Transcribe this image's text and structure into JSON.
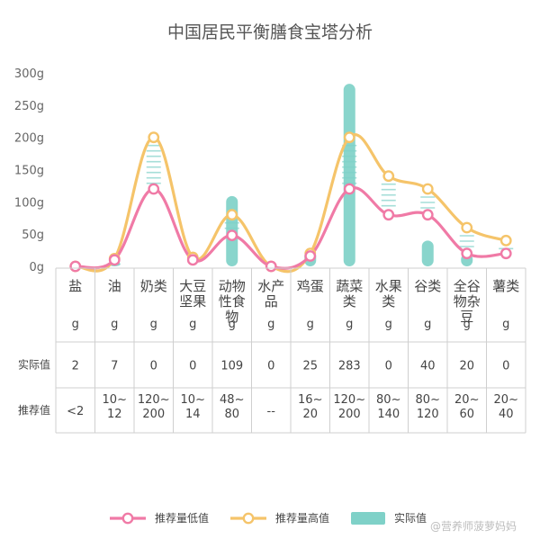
{
  "title": "中国居民平衡膳食宝塔分析",
  "watermark": "@营养师菠萝妈妈",
  "colors": {
    "low": "#f07aa6",
    "high": "#f5c46a",
    "actual": "#7fd1c8",
    "grid": "#cfcfcf"
  },
  "chart_data": {
    "type": "line",
    "title": "中国居民平衡膳食宝塔分析",
    "ylim": [
      0,
      300
    ],
    "yticks": [
      "0g",
      "50g",
      "100g",
      "150g",
      "200g",
      "250g",
      "300g"
    ],
    "categories": [
      {
        "name": [
          "盐"
        ],
        "unit": "g",
        "actual_label": "2",
        "rec_label": [
          "<2"
        ]
      },
      {
        "name": [
          "油"
        ],
        "unit": "g",
        "actual_label": "7",
        "rec_label": [
          "10~",
          "12"
        ]
      },
      {
        "name": [
          "奶类"
        ],
        "unit": "g",
        "actual_label": "0",
        "rec_label": [
          "120~",
          "200"
        ]
      },
      {
        "name": [
          "大豆",
          "坚果"
        ],
        "unit": "g",
        "actual_label": "0",
        "rec_label": [
          "10~",
          "14"
        ]
      },
      {
        "name": [
          "动物",
          "性食",
          "物"
        ],
        "unit": "g",
        "actual_label": "109",
        "rec_label": [
          "48~",
          "80"
        ]
      },
      {
        "name": [
          "水产",
          "品"
        ],
        "unit": "g",
        "actual_label": "0",
        "rec_label": [
          "--"
        ]
      },
      {
        "name": [
          "鸡蛋"
        ],
        "unit": "g",
        "actual_label": "25",
        "rec_label": [
          "16~",
          "20"
        ]
      },
      {
        "name": [
          "蔬菜",
          "类"
        ],
        "unit": "g",
        "actual_label": "283",
        "rec_label": [
          "120~",
          "200"
        ]
      },
      {
        "name": [
          "水果",
          "类"
        ],
        "unit": "g",
        "actual_label": "0",
        "rec_label": [
          "80~",
          "140"
        ]
      },
      {
        "name": [
          "谷类"
        ],
        "unit": "g",
        "actual_label": "40",
        "rec_label": [
          "80~",
          "120"
        ]
      },
      {
        "name": [
          "全谷",
          "物杂",
          "豆"
        ],
        "unit": "g",
        "actual_label": "20",
        "rec_label": [
          "20~",
          "60"
        ]
      },
      {
        "name": [
          "薯类"
        ],
        "unit": "g",
        "actual_label": "0",
        "rec_label": [
          "20~",
          "40"
        ]
      }
    ],
    "series": [
      {
        "name": "推荐量低值",
        "key": "low",
        "values": [
          0,
          10,
          120,
          10,
          48,
          0,
          16,
          120,
          80,
          80,
          20,
          20
        ]
      },
      {
        "name": "推荐量高值",
        "key": "high",
        "values": [
          0,
          12,
          200,
          14,
          80,
          0,
          20,
          200,
          140,
          120,
          60,
          40
        ]
      },
      {
        "name": "实际值",
        "key": "actual",
        "values": [
          2,
          7,
          0,
          0,
          109,
          0,
          25,
          283,
          0,
          40,
          20,
          0
        ]
      }
    ],
    "row_labels": {
      "actual": "实际值",
      "recommended": "推荐值"
    },
    "legend": [
      "推荐量低值",
      "推荐量高值",
      "实际值"
    ],
    "legend_position": "bottom",
    "grid": false
  }
}
